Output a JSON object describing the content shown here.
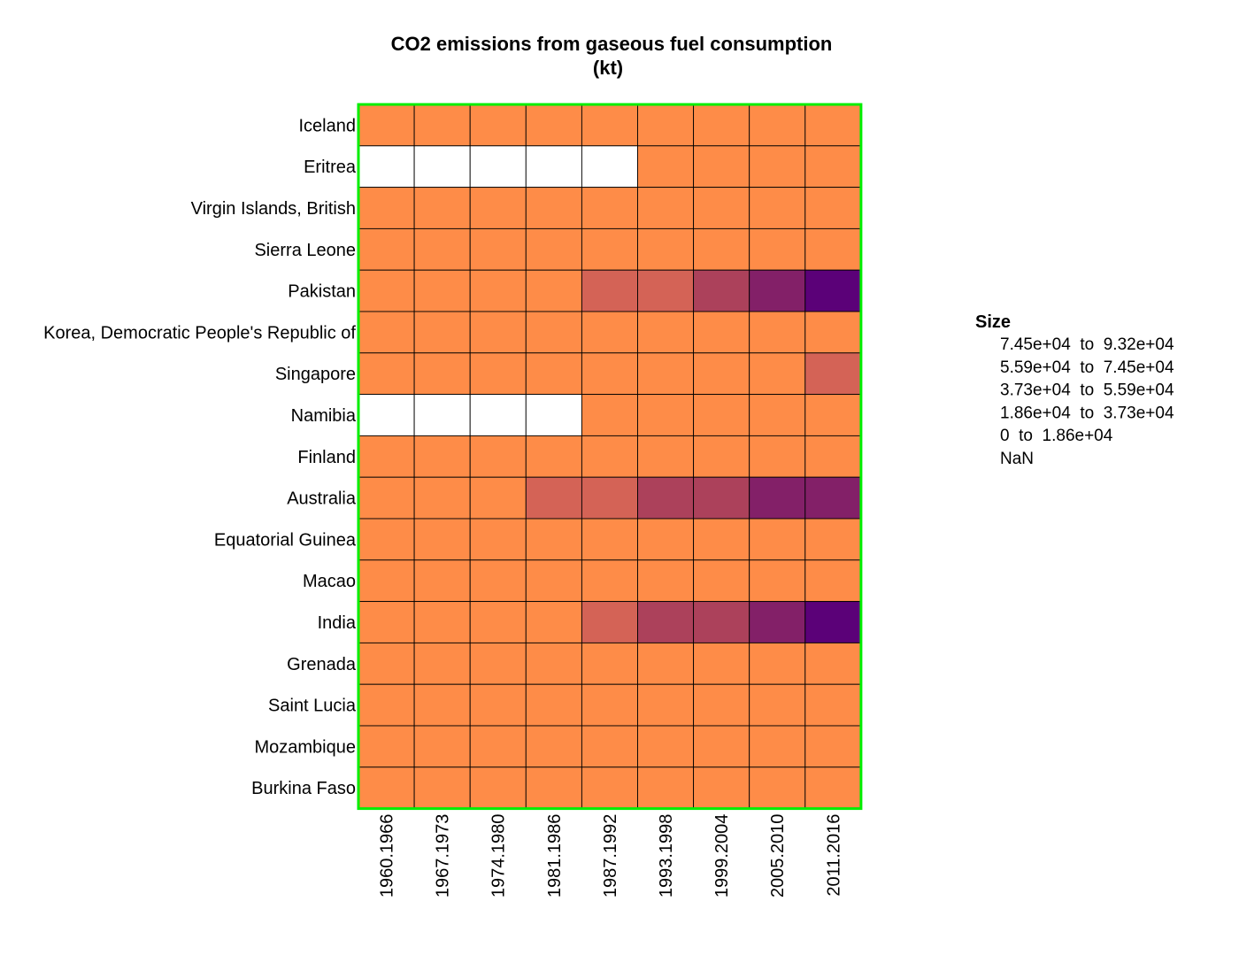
{
  "chart_data": {
    "type": "heatmap",
    "title_line1": "CO2 emissions from gaseous fuel consumption",
    "title_line2": "(kt)",
    "rows": [
      "Iceland",
      "Eritrea",
      "Virgin Islands, British",
      "Sierra Leone",
      "Pakistan",
      "Korea, Democratic People's Republic of",
      "Singapore",
      "Namibia",
      "Finland",
      "Australia",
      "Equatorial Guinea",
      "Macao",
      "India",
      "Grenada",
      "Saint Lucia",
      "Mozambique",
      "Burkina Faso"
    ],
    "columns": [
      "1960.1966",
      "1967.1973",
      "1974.1980",
      "1981.1986",
      "1987.1992",
      "1993.1998",
      "1999.2004",
      "2005.2010",
      "2011.2016"
    ],
    "bin_values": [
      [
        0,
        0,
        0,
        0,
        0,
        0,
        0,
        0,
        0
      ],
      [
        -1,
        -1,
        -1,
        -1,
        -1,
        0,
        0,
        0,
        0
      ],
      [
        0,
        0,
        0,
        0,
        0,
        0,
        0,
        0,
        0
      ],
      [
        0,
        0,
        0,
        0,
        0,
        0,
        0,
        0,
        0
      ],
      [
        0,
        0,
        0,
        0,
        1,
        1,
        2,
        3,
        4
      ],
      [
        0,
        0,
        0,
        0,
        0,
        0,
        0,
        0,
        0
      ],
      [
        0,
        0,
        0,
        0,
        0,
        0,
        0,
        0,
        1
      ],
      [
        -1,
        -1,
        -1,
        -1,
        0,
        0,
        0,
        0,
        0
      ],
      [
        0,
        0,
        0,
        0,
        0,
        0,
        0,
        0,
        0
      ],
      [
        0,
        0,
        0,
        1,
        1,
        2,
        2,
        3,
        3
      ],
      [
        0,
        0,
        0,
        0,
        0,
        0,
        0,
        0,
        0
      ],
      [
        0,
        0,
        0,
        0,
        0,
        0,
        0,
        0,
        0
      ],
      [
        0,
        0,
        0,
        0,
        1,
        2,
        2,
        3,
        4
      ],
      [
        0,
        0,
        0,
        0,
        0,
        0,
        0,
        0,
        0
      ],
      [
        0,
        0,
        0,
        0,
        0,
        0,
        0,
        0,
        0
      ],
      [
        0,
        0,
        0,
        0,
        0,
        0,
        0,
        0,
        0
      ],
      [
        0,
        0,
        0,
        0,
        0,
        0,
        0,
        0,
        0
      ]
    ],
    "bin_colors": [
      "#fe8c48",
      "#d46356",
      "#ac415b",
      "#832068",
      "#5b0178"
    ],
    "nan_color": "#ffffff",
    "border_color": "#00ee00",
    "legend": {
      "title": "Size",
      "entries": [
        "7.45e+04  to  9.32e+04",
        "5.59e+04  to  7.45e+04",
        "3.73e+04  to  5.59e+04",
        "1.86e+04  to  3.73e+04",
        "0  to  1.86e+04",
        "NaN"
      ]
    }
  }
}
